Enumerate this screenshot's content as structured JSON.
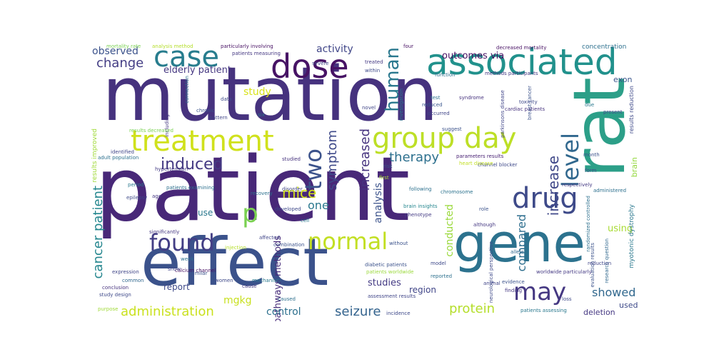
{
  "words": [
    {
      "text": "mutation",
      "color": "#46327e"
    },
    {
      "text": "patient",
      "color": "#482878"
    },
    {
      "text": "effect",
      "color": "#3b528b"
    },
    {
      "text": "rat",
      "color": "#2c9f88"
    },
    {
      "text": "gene",
      "color": "#2c728e"
    },
    {
      "text": "associated",
      "color": "#21918c"
    },
    {
      "text": "dose",
      "color": "#471365"
    },
    {
      "text": "case",
      "color": "#287d8e"
    },
    {
      "text": "group day",
      "color": "#bddf26"
    },
    {
      "text": "treatment",
      "color": "#d0e11c"
    },
    {
      "text": "drug",
      "color": "#3e4a89"
    },
    {
      "text": "level",
      "color": "#31688e"
    },
    {
      "text": "found",
      "color": "#433e85"
    },
    {
      "text": "normal",
      "color": "#c2df23"
    },
    {
      "text": "may",
      "color": "#453882"
    },
    {
      "text": "p",
      "color": "#7ad151"
    },
    {
      "text": "two",
      "color": "#3b528b"
    },
    {
      "text": "human",
      "color": "#2a788e"
    },
    {
      "text": "symptom",
      "color": "#3e4989"
    },
    {
      "text": "induced",
      "color": "#443a83"
    },
    {
      "text": "mice",
      "color": "#d2e21b"
    },
    {
      "text": "therapy",
      "color": "#2d708e"
    },
    {
      "text": "increase",
      "color": "#3f4788"
    },
    {
      "text": "increased",
      "color": "#46337f"
    },
    {
      "text": "administration",
      "color": "#cae11f"
    },
    {
      "text": "seizure",
      "color": "#33638d"
    },
    {
      "text": "protein",
      "color": "#b5de2b"
    },
    {
      "text": "cancer patient",
      "color": "#24868e"
    },
    {
      "text": "showed",
      "color": "#31688e"
    },
    {
      "text": "compared",
      "color": "#2e6e8e"
    },
    {
      "text": "change",
      "color": "#433d84"
    },
    {
      "text": "observed",
      "color": "#3b528b"
    },
    {
      "text": "activity",
      "color": "#404688"
    },
    {
      "text": "elderly patient",
      "color": "#453781"
    },
    {
      "text": "study",
      "color": "#d8e219"
    },
    {
      "text": "one",
      "color": "#2a788e"
    },
    {
      "text": "mgkg",
      "color": "#c8e020"
    },
    {
      "text": "conducted",
      "color": "#9bd93c"
    },
    {
      "text": "analysis",
      "color": "#3b528b"
    },
    {
      "text": "pathways methods",
      "color": "#472c7a"
    },
    {
      "text": "using",
      "color": "#a8db34"
    },
    {
      "text": "studies",
      "color": "#443b84"
    },
    {
      "text": "control",
      "color": "#2d708e"
    },
    {
      "text": "region",
      "color": "#404588"
    },
    {
      "text": "report",
      "color": "#3e4989"
    },
    {
      "text": "use",
      "color": "#2a788e"
    },
    {
      "text": "deletion",
      "color": "#453882"
    },
    {
      "text": "used",
      "color": "#3e4a89"
    },
    {
      "text": "brain",
      "color": "#95d840"
    },
    {
      "text": "outcomes via",
      "color": "#471063"
    },
    {
      "text": "exon",
      "color": "#39558c"
    },
    {
      "text": "concentration",
      "color": "#2d708e"
    },
    {
      "text": "results improved",
      "color": "#a0da39"
    },
    {
      "text": "myotonic dystrophy",
      "color": "#2a788e"
    },
    {
      "text": "results reduction",
      "color": "#3e4989"
    },
    {
      "text": "particularly involving",
      "color": "#471063"
    },
    {
      "text": "patients measuring",
      "color": "#453882"
    },
    {
      "text": "analysis method",
      "color": "#b5de2b"
    },
    {
      "text": "mortality rate",
      "color": "#7ad151"
    },
    {
      "text": "randomized controlled",
      "color": "#2d708e"
    },
    {
      "text": "evaluation results",
      "color": "#3b528b"
    },
    {
      "text": "research question",
      "color": "#31688e"
    },
    {
      "text": "worldwide particularly",
      "color": "#443983"
    },
    {
      "text": "channel blocker",
      "color": "#3e4989"
    },
    {
      "text": "parameters results",
      "color": "#482173"
    },
    {
      "text": "cardiac patients",
      "color": "#46327e"
    },
    {
      "text": "diabetic patients",
      "color": "#3b528b"
    },
    {
      "text": "patients worldwide",
      "color": "#9bd93c"
    },
    {
      "text": "heart disease",
      "color": "#c2df23"
    },
    {
      "text": "brain insights",
      "color": "#24868e"
    },
    {
      "text": "chromosome",
      "color": "#2c728e"
    },
    {
      "text": "calcium channel",
      "color": "#471063"
    },
    {
      "text": "study design",
      "color": "#3e4989"
    },
    {
      "text": "adult population",
      "color": "#2d708e"
    },
    {
      "text": "significantly",
      "color": "#453882"
    },
    {
      "text": "combination",
      "color": "#3b528b"
    },
    {
      "text": "expression",
      "color": "#404688"
    },
    {
      "text": "mechanism",
      "color": "#2a788e"
    },
    {
      "text": "injection",
      "color": "#b5de2b"
    },
    {
      "text": "epilepsy",
      "color": "#3e4989"
    },
    {
      "text": "patients examining",
      "color": "#2d708e"
    },
    {
      "text": "hypertension",
      "color": "#443b84"
    },
    {
      "text": "identified",
      "color": "#404588"
    },
    {
      "text": "conclusion",
      "color": "#46327e"
    },
    {
      "text": "common",
      "color": "#31688e"
    },
    {
      "text": "purpose",
      "color": "#a0da39"
    },
    {
      "text": "chronic",
      "color": "#3b528b"
    },
    {
      "text": "pattern",
      "color": "#404588"
    },
    {
      "text": "connection",
      "color": "#2d708e"
    },
    {
      "text": "including",
      "color": "#453882"
    },
    {
      "text": "data",
      "color": "#3e4a89"
    },
    {
      "text": "six",
      "color": "#2a788e"
    },
    {
      "text": "suggest",
      "color": "#3b528b"
    },
    {
      "text": "occurred",
      "color": "#404588"
    },
    {
      "text": "treated",
      "color": "#443983"
    },
    {
      "text": "within",
      "color": "#3e4989"
    },
    {
      "text": "function",
      "color": "#2d708e"
    },
    {
      "text": "novel",
      "color": "#404688"
    },
    {
      "text": "test",
      "color": "#2c728e"
    },
    {
      "text": "reduced",
      "color": "#39558c"
    },
    {
      "text": "syndrome",
      "color": "#46327e"
    },
    {
      "text": "toxicity",
      "color": "#3e4989"
    },
    {
      "text": "due",
      "color": "#2a788e"
    },
    {
      "text": "present",
      "color": "#404588"
    },
    {
      "text": "month",
      "color": "#3b528b"
    },
    {
      "text": "respectively",
      "color": "#443983"
    },
    {
      "text": "administered",
      "color": "#2d708e"
    },
    {
      "text": "form",
      "color": "#3e4a89"
    },
    {
      "text": "four",
      "color": "#471063"
    },
    {
      "text": "severe",
      "color": "#404588"
    },
    {
      "text": "risk",
      "color": "#3b528b"
    },
    {
      "text": "first",
      "color": "#a8db34"
    },
    {
      "text": "following",
      "color": "#2d708e"
    },
    {
      "text": "phenotype",
      "color": "#443b84"
    },
    {
      "text": "developed",
      "color": "#3e4989"
    },
    {
      "text": "disorder",
      "color": "#404588"
    },
    {
      "text": "cell",
      "color": "#2a788e"
    },
    {
      "text": "role",
      "color": "#3b528b"
    },
    {
      "text": "although",
      "color": "#453882"
    },
    {
      "text": "allele",
      "color": "#31688e"
    },
    {
      "text": "reduction",
      "color": "#404588"
    },
    {
      "text": "model",
      "color": "#3e4989"
    },
    {
      "text": "reported",
      "color": "#2d708e"
    },
    {
      "text": "animal",
      "color": "#404588"
    },
    {
      "text": "evidence",
      "color": "#3b528b"
    },
    {
      "text": "finding",
      "color": "#453882"
    },
    {
      "text": "loss",
      "color": "#3e4989"
    },
    {
      "text": "caused",
      "color": "#2d708e"
    },
    {
      "text": "assessment results",
      "color": "#404588"
    },
    {
      "text": "patients assessing",
      "color": "#2a788e"
    },
    {
      "text": "incidence",
      "color": "#3e4989"
    },
    {
      "text": "cause",
      "color": "#443983"
    },
    {
      "text": "similar",
      "color": "#3b528b"
    },
    {
      "text": "show",
      "color": "#404588"
    },
    {
      "text": "week",
      "color": "#2d708e"
    },
    {
      "text": "women",
      "color": "#3e4989"
    },
    {
      "text": "age",
      "color": "#453882"
    },
    {
      "text": "period",
      "color": "#2a788e"
    },
    {
      "text": "affected",
      "color": "#404588"
    },
    {
      "text": "without",
      "color": "#3b528b"
    },
    {
      "text": "studied",
      "color": "#46327e"
    },
    {
      "text": "recovery",
      "color": "#2d708e"
    },
    {
      "text": "results decreased",
      "color": "#7ad151"
    },
    {
      "text": "neurological perspective",
      "color": "#3e4989"
    },
    {
      "text": "parkinsons disease",
      "color": "#404588"
    },
    {
      "text": "breast cancer",
      "color": "#3b528b"
    },
    {
      "text": "methods participants",
      "color": "#443983"
    },
    {
      "text": "decreased mortality",
      "color": "#471063"
    },
    {
      "text": "investigation",
      "color": "#2a788e"
    }
  ]
}
